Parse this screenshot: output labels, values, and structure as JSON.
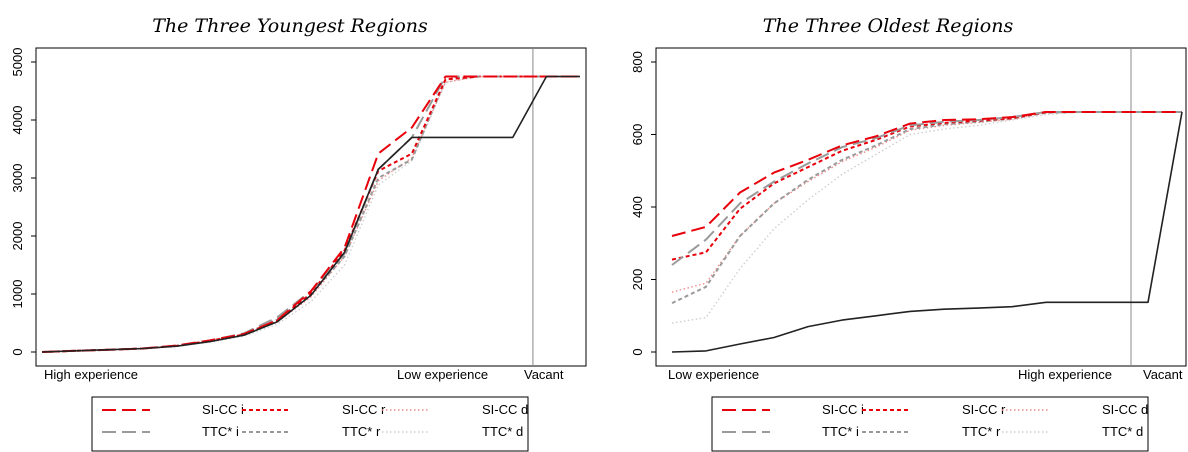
{
  "chart_data": [
    {
      "type": "line",
      "title": "The Three Youngest Regions",
      "xlabel": "",
      "ylabel": "",
      "ylim": [
        0,
        5000
      ],
      "y_ticks": [
        "0",
        "1000",
        "2000",
        "3000",
        "4000",
        "5000"
      ],
      "x_labels": [
        "High experience",
        "Low experience",
        "Vacant"
      ],
      "x": [
        1,
        2,
        3,
        4,
        5,
        6,
        7,
        8,
        9,
        10,
        11,
        12,
        13,
        14,
        15,
        16,
        17
      ],
      "vertical_line_x": 15.6,
      "legend_placement": "bottom",
      "series": [
        {
          "name": "SI-CC i",
          "color": "#e8000b",
          "dash": "long",
          "values": [
            0,
            20,
            40,
            60,
            110,
            200,
            310,
            550,
            1050,
            1800,
            3420,
            3870,
            4750,
            4750,
            4750,
            4750,
            4750
          ]
        },
        {
          "name": "SI-CC r",
          "color": "#e8000b",
          "dash": "short",
          "values": [
            0,
            20,
            40,
            60,
            105,
            195,
            300,
            540,
            1010,
            1750,
            3120,
            3420,
            4700,
            4750,
            4750,
            4750,
            4750
          ]
        },
        {
          "name": "SI-CC d",
          "color": "#f28b8b",
          "dash": "dot",
          "values": [
            0,
            18,
            38,
            55,
            100,
            185,
            290,
            520,
            950,
            1650,
            2950,
            3350,
            4650,
            4750,
            4750,
            4750,
            4750
          ]
        },
        {
          "name": "TTC* i",
          "color": "#9a9a9a",
          "dash": "long",
          "values": [
            0,
            20,
            40,
            60,
            110,
            200,
            320,
            600,
            1050,
            1700,
            3150,
            3700,
            4750,
            4750,
            4750,
            4750,
            4750
          ]
        },
        {
          "name": "TTC* r",
          "color": "#9a9a9a",
          "dash": "short",
          "values": [
            0,
            20,
            40,
            60,
            105,
            190,
            300,
            560,
            1000,
            1650,
            3000,
            3320,
            4700,
            4750,
            4750,
            4750,
            4750
          ]
        },
        {
          "name": "TTC* d",
          "color": "#cfcfcf",
          "dash": "dot",
          "values": [
            0,
            18,
            36,
            52,
            95,
            170,
            270,
            480,
            870,
            1500,
            2880,
            3300,
            4650,
            4750,
            4750,
            4750,
            4750
          ]
        },
        {
          "name": "",
          "color": "#222222",
          "dash": "solid",
          "values": [
            0,
            20,
            40,
            60,
            100,
            180,
            290,
            520,
            980,
            1720,
            3150,
            3700,
            3700,
            3700,
            3700,
            4750,
            4750
          ]
        }
      ]
    },
    {
      "type": "line",
      "title": "The Three Oldest Regions",
      "xlabel": "",
      "ylabel": "",
      "ylim": [
        0,
        800
      ],
      "y_ticks": [
        "0",
        "200",
        "400",
        "600",
        "800"
      ],
      "x_labels": [
        "Low experience",
        "High experience",
        "Vacant"
      ],
      "x": [
        1,
        2,
        3,
        4,
        5,
        6,
        7,
        8,
        9,
        10,
        11,
        12,
        13,
        14,
        15,
        16
      ],
      "vertical_line_x": 14.5,
      "legend_placement": "bottom",
      "series": [
        {
          "name": "SI-CC i",
          "color": "#e8000b",
          "dash": "long",
          "values": [
            320,
            345,
            440,
            495,
            530,
            570,
            595,
            630,
            640,
            642,
            648,
            662,
            662,
            662,
            662,
            662
          ]
        },
        {
          "name": "SI-CC r",
          "color": "#e8000b",
          "dash": "short",
          "values": [
            255,
            275,
            395,
            465,
            510,
            555,
            585,
            622,
            632,
            638,
            645,
            662,
            662,
            662,
            662,
            662
          ]
        },
        {
          "name": "SI-CC d",
          "color": "#f28b8b",
          "dash": "dot",
          "values": [
            165,
            190,
            320,
            410,
            470,
            525,
            565,
            612,
            625,
            633,
            642,
            660,
            662,
            662,
            662,
            662
          ]
        },
        {
          "name": "TTC* i",
          "color": "#9a9a9a",
          "dash": "long",
          "values": [
            240,
            310,
            410,
            470,
            520,
            565,
            590,
            625,
            635,
            640,
            648,
            662,
            662,
            662,
            662,
            662
          ]
        },
        {
          "name": "TTC* r",
          "color": "#9a9a9a",
          "dash": "short",
          "values": [
            135,
            180,
            320,
            410,
            475,
            530,
            570,
            615,
            628,
            635,
            644,
            660,
            662,
            662,
            662,
            662
          ]
        },
        {
          "name": "TTC* d",
          "color": "#cfcfcf",
          "dash": "dot",
          "values": [
            80,
            95,
            230,
            340,
            420,
            490,
            545,
            600,
            615,
            625,
            640,
            655,
            662,
            662,
            662,
            662
          ]
        },
        {
          "name": "",
          "color": "#222222",
          "dash": "solid",
          "values": [
            0,
            3,
            22,
            40,
            70,
            88,
            100,
            112,
            118,
            121,
            125,
            137,
            137,
            137,
            137,
            662
          ]
        }
      ]
    }
  ]
}
